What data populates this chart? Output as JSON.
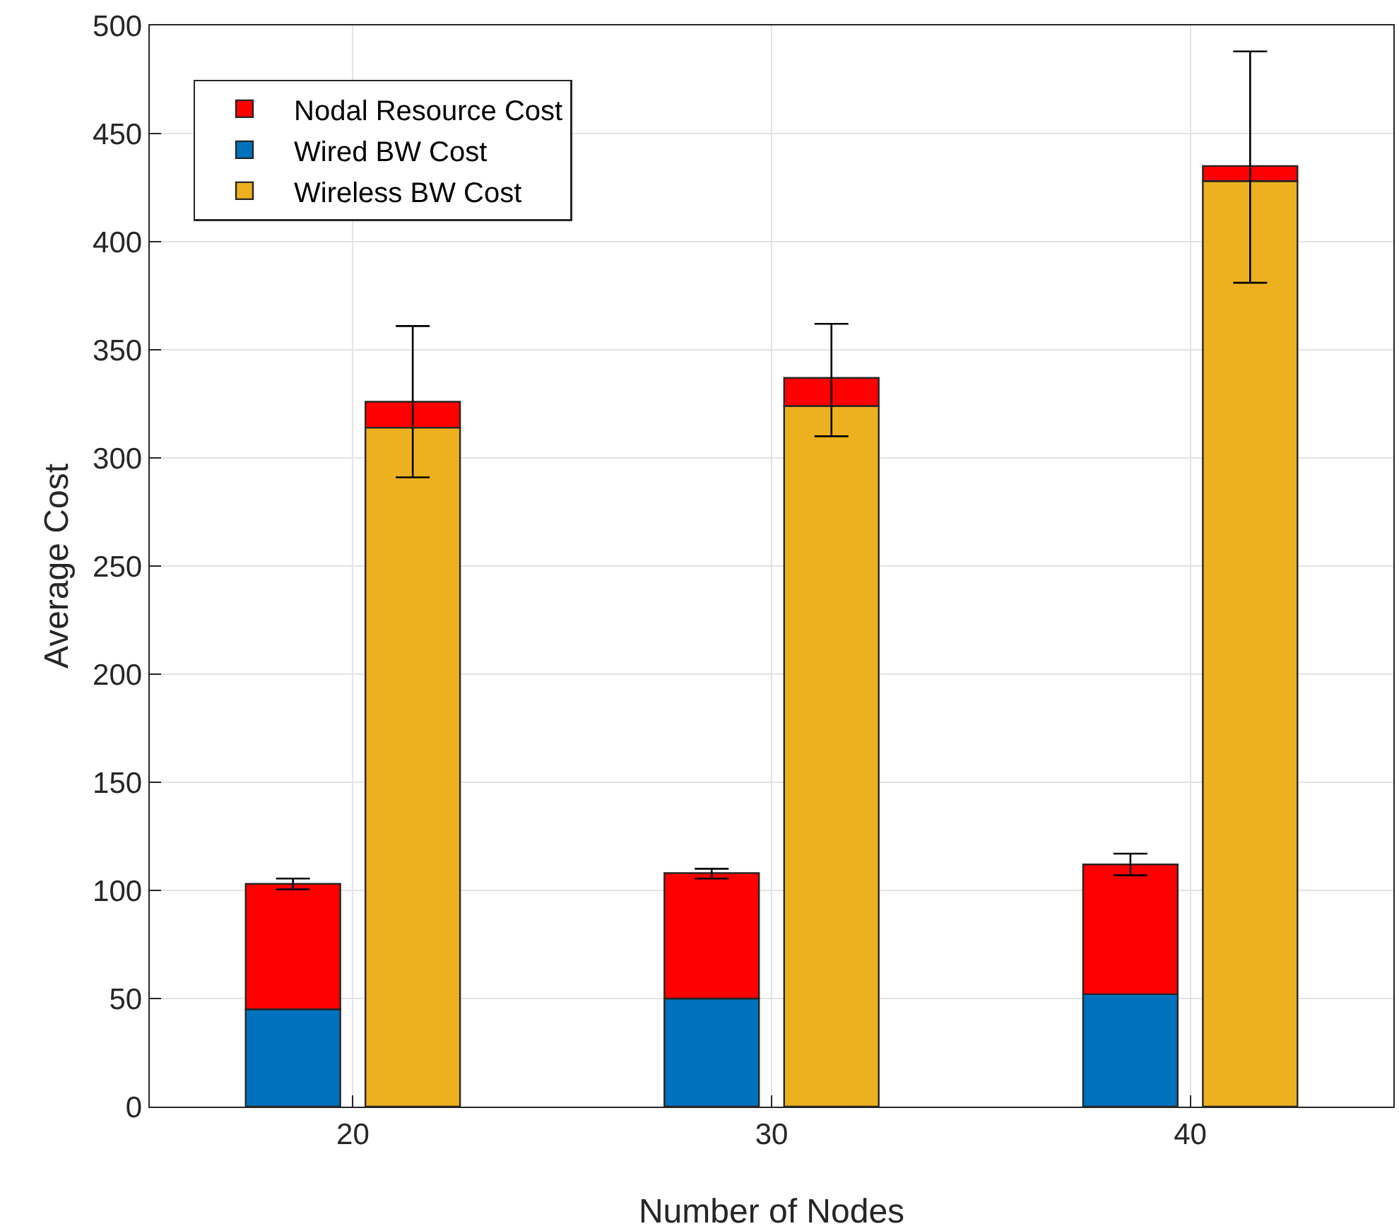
{
  "chart_data": {
    "type": "bar",
    "stacked": true,
    "xlabel": "Number of Nodes",
    "ylabel": "Average Cost",
    "xlim": [
      15.15,
      44.85
    ],
    "xticks": [
      20,
      30,
      40
    ],
    "ylim": [
      0,
      500
    ],
    "yticks": [
      0,
      50,
      100,
      150,
      200,
      250,
      300,
      350,
      400,
      450,
      500
    ],
    "grid": true,
    "legend": "top left",
    "x": [
      18.57,
      21.43,
      28.57,
      31.43,
      38.57,
      41.43
    ],
    "series": [
      {
        "name": "Wired BW Cost",
        "color": "#0072bd",
        "values": [
          45,
          null,
          50,
          null,
          52,
          null
        ]
      },
      {
        "name": "Wireless BW Cost",
        "color": "#edb120",
        "values": [
          null,
          314,
          null,
          324,
          null,
          428
        ]
      },
      {
        "name": "Nodal Resource Cost",
        "color": "#ff0000",
        "values": [
          58,
          12,
          58,
          13,
          60,
          7
        ],
        "errors": [
          [
            100.5,
            105.5
          ],
          [
            291,
            361
          ],
          [
            105.5,
            110
          ],
          [
            310,
            362
          ],
          [
            107,
            117
          ],
          [
            381,
            488
          ]
        ]
      }
    ]
  }
}
